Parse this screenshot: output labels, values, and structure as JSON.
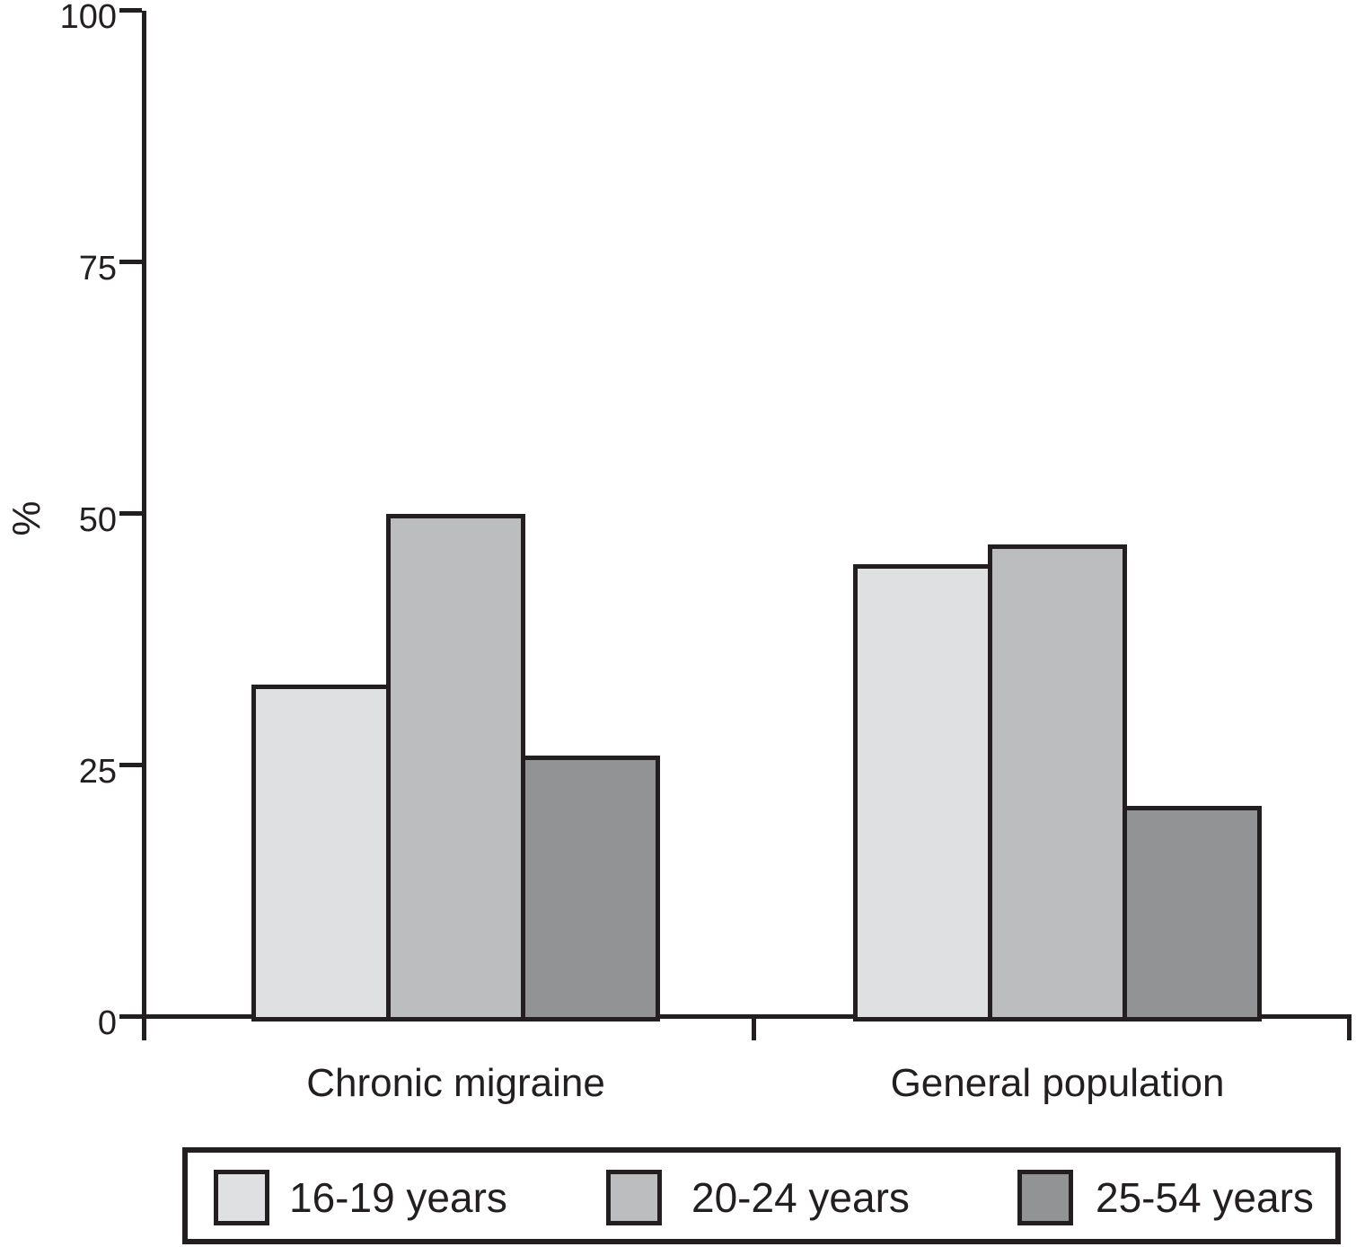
{
  "chart_data": {
    "type": "bar",
    "title": "",
    "xlabel": "",
    "ylabel": "%",
    "ylim": [
      0,
      100
    ],
    "yticks": [
      0,
      25,
      50,
      75,
      100
    ],
    "grid": false,
    "legend_position": "bottom",
    "axis_color": "#231f20",
    "bar_border_color": "#231f20",
    "categories": [
      "Chronic migraine",
      "General population"
    ],
    "series": [
      {
        "name": "16-19 years",
        "color": "#dfe0e2",
        "values": [
          33,
          45
        ]
      },
      {
        "name": "20-24 years",
        "color": "#bbbdbf",
        "values": [
          50,
          47
        ]
      },
      {
        "name": "25-54 years",
        "color": "#919395",
        "values": [
          26,
          21
        ]
      }
    ]
  }
}
